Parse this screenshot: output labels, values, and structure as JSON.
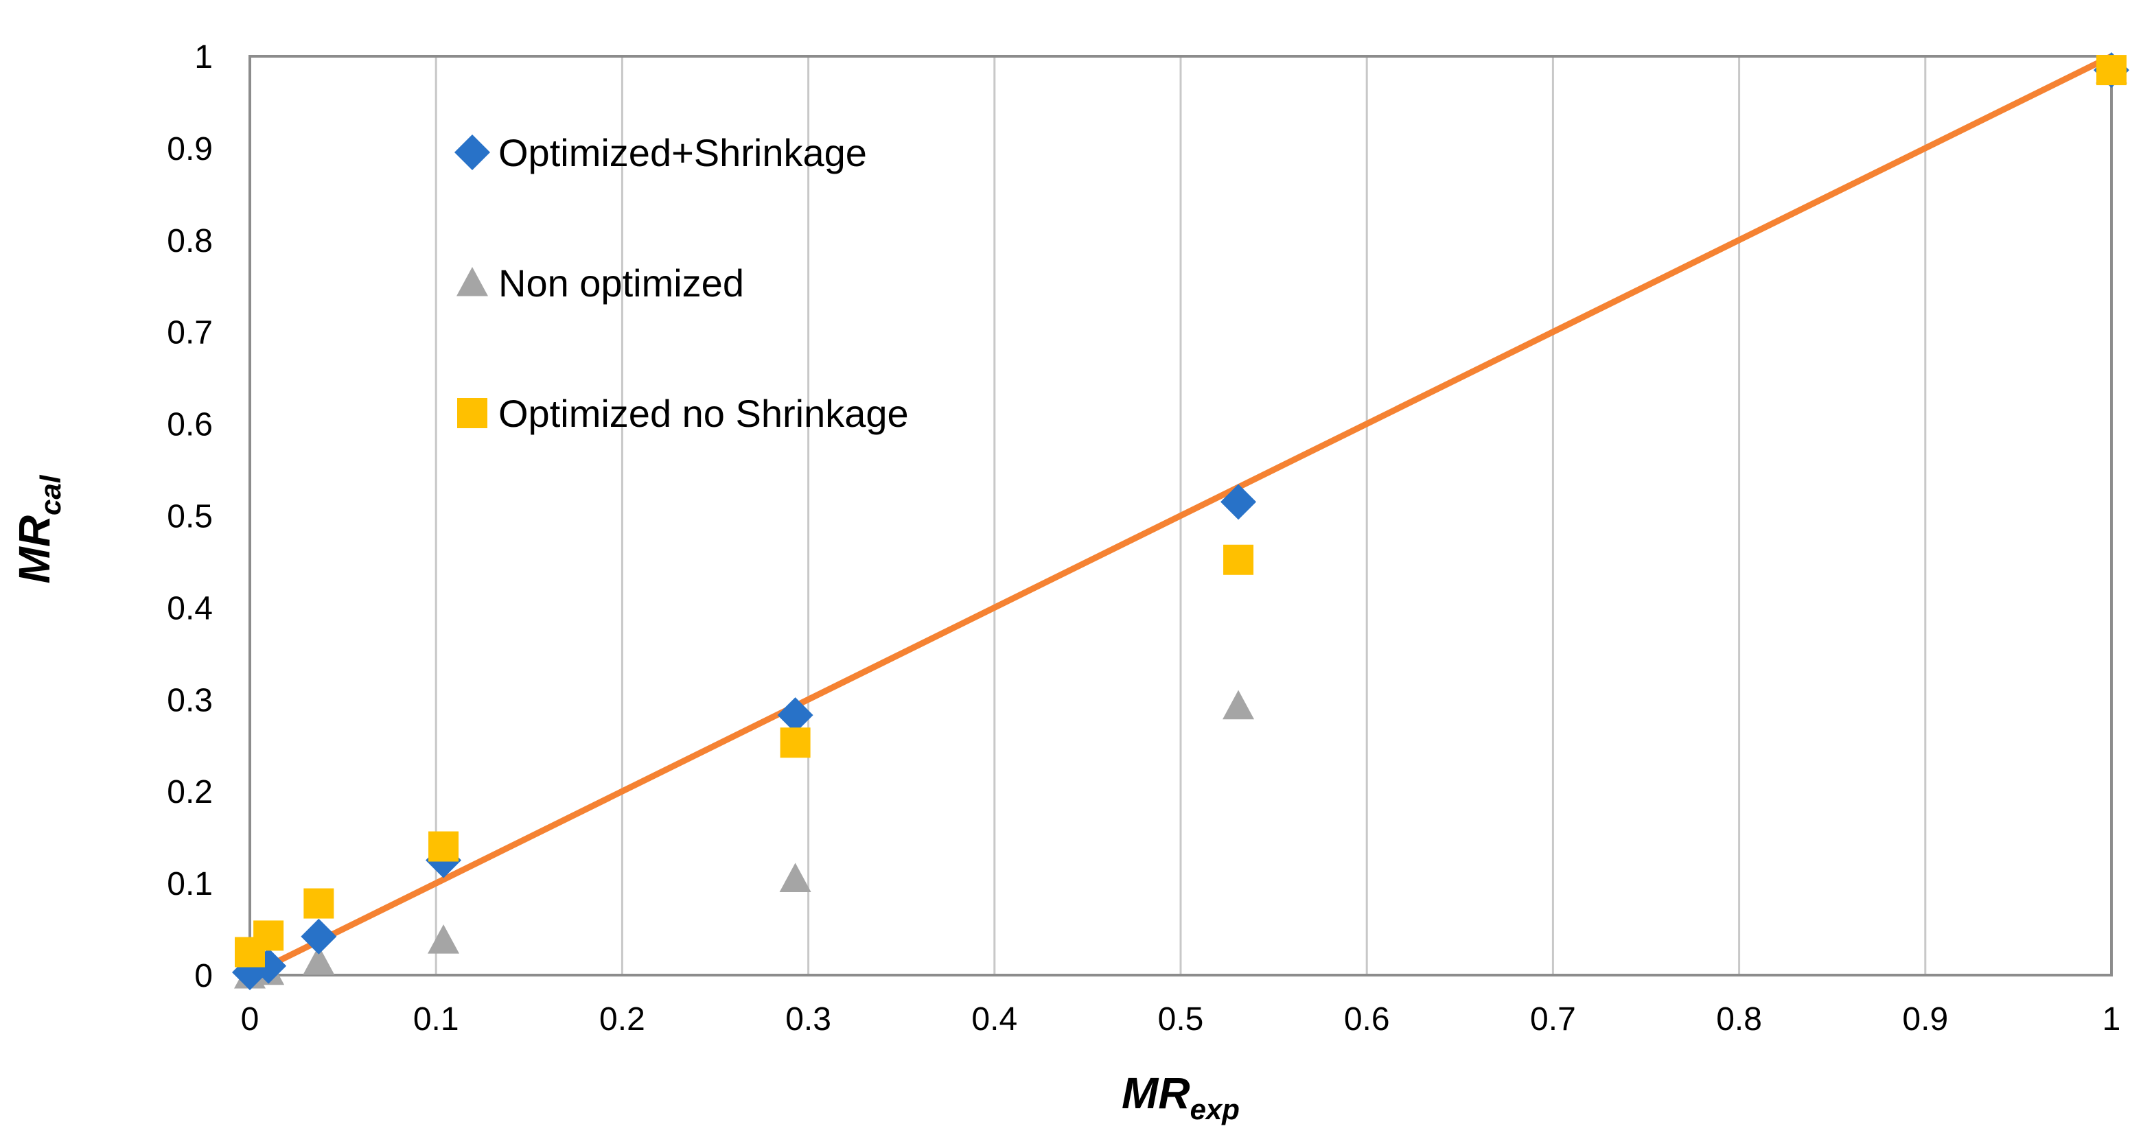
{
  "chart_data": {
    "type": "scatter",
    "title": "",
    "xlabel": {
      "main": "MR",
      "sub": "exp"
    },
    "ylabel": {
      "main": "MR",
      "sub": "cal"
    },
    "xlim": [
      0,
      1
    ],
    "ylim": [
      0,
      1
    ],
    "x_ticks": [
      "0",
      "0.1",
      "0.2",
      "0.3",
      "0.4",
      "0.5",
      "0.6",
      "0.7",
      "0.8",
      "0.9",
      "1"
    ],
    "y_ticks": [
      "0",
      "0.1",
      "0.2",
      "0.3",
      "0.4",
      "0.5",
      "0.6",
      "0.7",
      "0.8",
      "0.9",
      "1"
    ],
    "grid": "vertical",
    "legend_position": "top-left",
    "series": [
      {
        "name": "Optimized+Shrinkage",
        "marker": "diamond",
        "color": "#2872C8",
        "x": [
          0,
          0.01,
          0.037,
          0.104,
          0.293,
          0.531,
          1.0
        ],
        "y": [
          0.003,
          0.01,
          0.042,
          0.125,
          0.283,
          0.515,
          0.985
        ]
      },
      {
        "name": "Non optimized",
        "marker": "triangle",
        "color": "#A5A5A5",
        "x": [
          0,
          0.01,
          0.037,
          0.104,
          0.293,
          0.531,
          1.0
        ],
        "y": [
          0.0,
          0.004,
          0.015,
          0.038,
          0.105,
          0.293,
          0.985
        ]
      },
      {
        "name": "Optimized no Shrinkage",
        "marker": "square",
        "color": "#FFC000",
        "x": [
          0,
          0.01,
          0.037,
          0.104,
          0.293,
          0.531,
          1.0
        ],
        "y": [
          0.025,
          0.043,
          0.078,
          0.14,
          0.253,
          0.452,
          0.985
        ]
      }
    ],
    "reference_line": {
      "name": "y = x",
      "color": "#F58232",
      "x": [
        0,
        1
      ],
      "y": [
        0,
        1
      ]
    }
  }
}
